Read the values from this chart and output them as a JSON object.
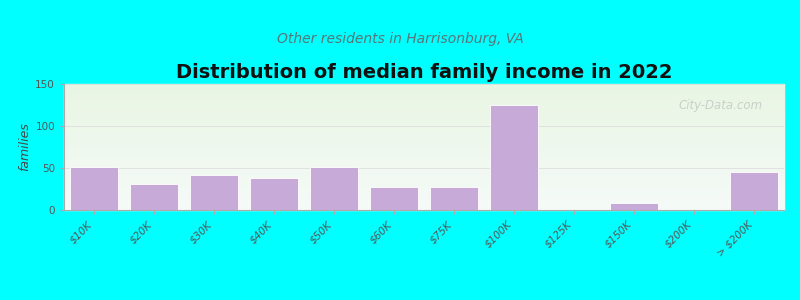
{
  "title": "Distribution of median family income in 2022",
  "subtitle": "Other residents in Harrisonburg, VA",
  "ylabel": "families",
  "categories": [
    "$10K",
    "$20K",
    "$30K",
    "$40K",
    "$50K",
    "$60K",
    "$75K",
    "$100K",
    "$125K",
    "$150K",
    "$200K",
    "> $200K"
  ],
  "values": [
    51,
    31,
    42,
    38,
    51,
    27,
    27,
    125,
    0,
    8,
    0,
    45
  ],
  "bar_color": "#c8aad8",
  "bar_edge_color": "#ffffff",
  "ylim": [
    0,
    150
  ],
  "yticks": [
    0,
    50,
    100,
    150
  ],
  "bg_color": "#00ffff",
  "watermark": "City-Data.com",
  "title_fontsize": 14,
  "subtitle_fontsize": 10,
  "ylabel_fontsize": 9,
  "tick_fontsize": 7.5,
  "subtitle_color": "#557777",
  "title_color": "#111111",
  "ylabel_color": "#444444",
  "tick_color": "#555555",
  "grid_color": "#dddddd",
  "spine_color": "#aaaaaa"
}
